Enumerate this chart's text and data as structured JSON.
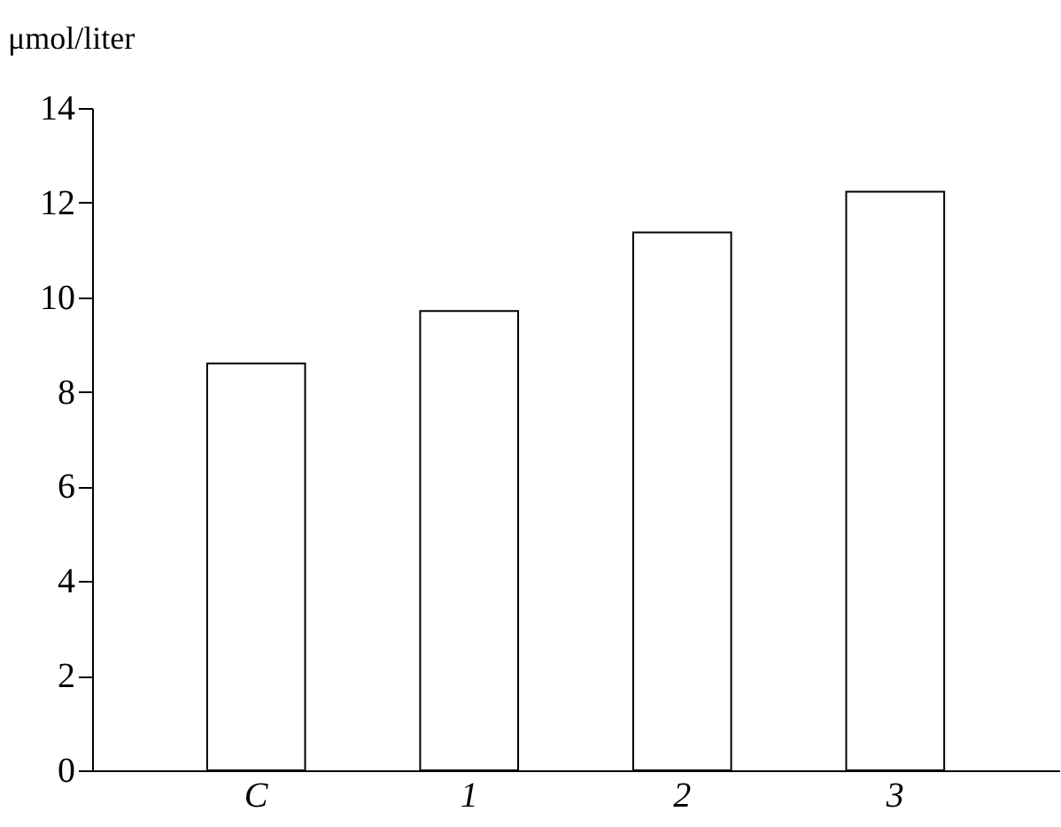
{
  "chart_data": {
    "type": "bar",
    "ylabel": "μmol/liter",
    "categories": [
      "C",
      "1",
      "2",
      "3"
    ],
    "values": [
      8.6,
      9.71,
      11.37,
      12.23
    ],
    "color": "#ffffff",
    "ylim": [
      0,
      14
    ],
    "yticks": [
      0,
      2,
      4,
      6,
      8,
      10,
      12,
      14
    ],
    "grid": false
  }
}
